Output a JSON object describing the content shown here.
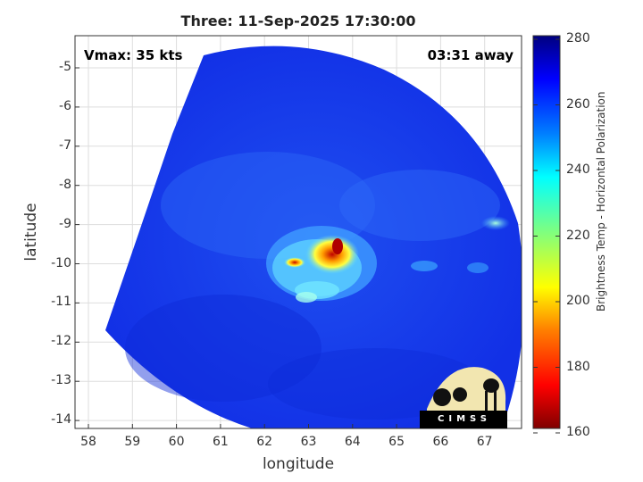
{
  "title": "Three: 11-Sep-2025 17:30:00",
  "overlay": {
    "vmax": "Vmax: 35 kts",
    "distance": "03:31 away"
  },
  "axes": {
    "xlabel": "longitude",
    "ylabel": "latitude",
    "xticks": [
      "58",
      "59",
      "60",
      "61",
      "62",
      "63",
      "64",
      "65",
      "66",
      "67"
    ],
    "yticks": [
      "-5",
      "-6",
      "-7",
      "-8",
      "-9",
      "-10",
      "-11",
      "-12",
      "-13",
      "-14"
    ]
  },
  "colorbar": {
    "label": "Brightness Temp - Horizontal Polarization",
    "ticks": [
      "280",
      "260",
      "240",
      "220",
      "200",
      "180",
      "160"
    ],
    "colormap": [
      "#00007f",
      "#0000ff",
      "#007fff",
      "#00ffff",
      "#7fff7f",
      "#ffff00",
      "#ff7f00",
      "#ff0000",
      "#7f0000"
    ]
  },
  "logo": {
    "text": "CIMSS"
  }
}
